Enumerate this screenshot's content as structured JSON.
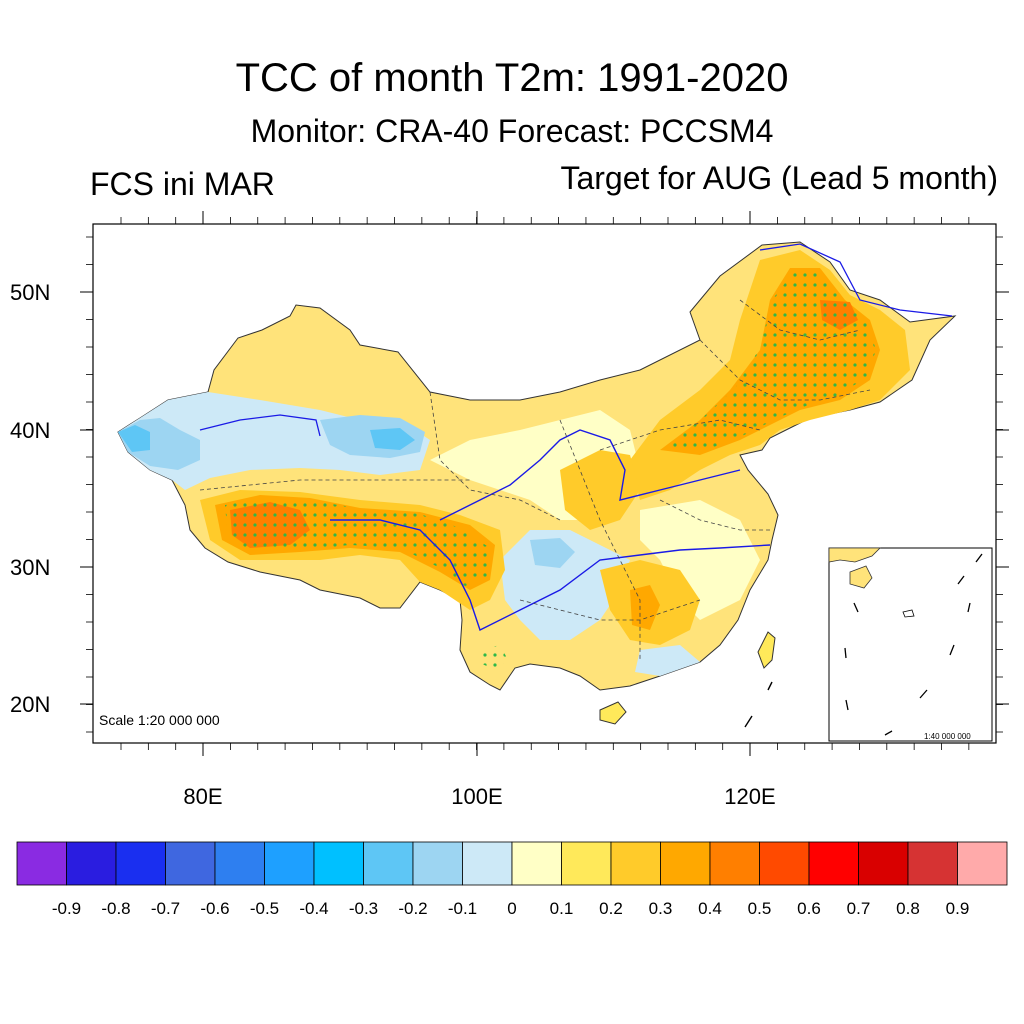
{
  "header": {
    "title": "TCC of month T2m: 1991-2020",
    "subtitle": "Monitor: CRA-40   Forecast: PCCSM4",
    "left_label": "FCS ini MAR",
    "right_label": "Target for AUG (Lead 5 month)"
  },
  "map": {
    "lat_labels": [
      "50N",
      "40N",
      "30N",
      "20N"
    ],
    "lon_labels": [
      "80E",
      "100E",
      "120E"
    ],
    "scale_main": "Scale 1:20 000 000",
    "scale_inset": "1:40 000 000"
  },
  "colorbar": {
    "labels": [
      "-0.9",
      "-0.8",
      "-0.7",
      "-0.6",
      "-0.5",
      "-0.4",
      "-0.3",
      "-0.2",
      "-0.1",
      "0",
      "0.1",
      "0.2",
      "0.3",
      "0.4",
      "0.5",
      "0.6",
      "0.7",
      "0.8",
      "0.9"
    ],
    "colors": [
      "#8a2be2",
      "#2a1de0",
      "#1a2ff0",
      "#3f67e0",
      "#2e7ff0",
      "#1ea0ff",
      "#00c0ff",
      "#5ec6f5",
      "#9dd5f2",
      "#cde9f7",
      "#ffffc6",
      "#ffe95a",
      "#ffcb2a",
      "#ffa800",
      "#ff7f00",
      "#ff4a00",
      "#ff0000",
      "#d90000",
      "#d63333",
      "#ffaaaa"
    ]
  }
}
